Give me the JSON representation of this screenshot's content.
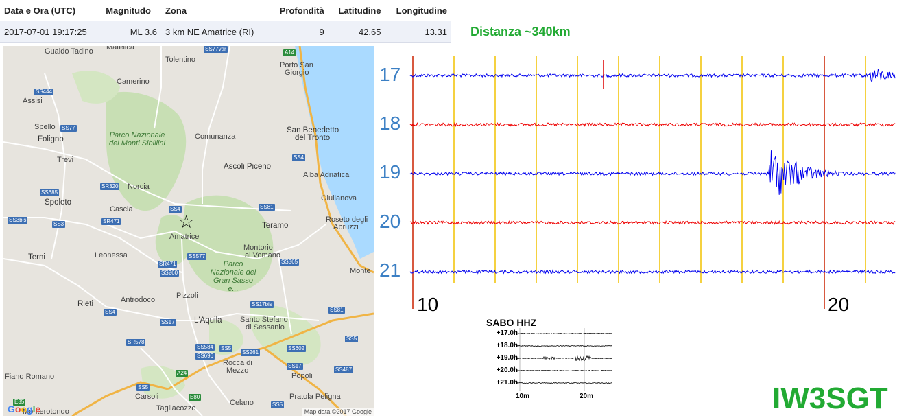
{
  "event_table": {
    "headers": {
      "datetime": "Data e Ora (UTC)",
      "magnitude": "Magnitudo",
      "zone": "Zona",
      "depth": "Profondità",
      "latitude": "Latitudine",
      "longitude": "Longitudine"
    },
    "row": {
      "datetime": "2017-07-01 19:17:25",
      "magnitude": "ML 3.6",
      "zone": "3 km NE Amatrice (RI)",
      "depth": "9",
      "latitude": "42.65",
      "longitude": "13.31"
    }
  },
  "distance": "Distanza ~340km",
  "map": {
    "labels": [
      "Gualdo Tadino",
      "Matelica",
      "Tolentino",
      "Porto San",
      "Giorgio",
      "Camerino",
      "Assisi",
      "Spello",
      "Foligno",
      "Trevi",
      "Spoleto",
      "Norcia",
      "Cascia",
      "Amatrice",
      "Terni",
      "Leonessa",
      "Rieti",
      "Antrodoco",
      "Pizzoli",
      "L'Aquila",
      "Comunanza",
      "Ascoli Piceno",
      "San Benedetto",
      "del Tronto",
      "Alba Adriatica",
      "Giulianova",
      "Roseto degli",
      "Abruzzi",
      "Teramo",
      "Montorio",
      "al Vomano",
      "Santo Stefano",
      "di Sessanio",
      "Rocca di",
      "Mezzo",
      "Popoli",
      "Pratola Peligna",
      "Celano",
      "Carsoli",
      "Tagliacozzo",
      "Fiano Romano",
      "Monterotondo",
      "Monte"
    ],
    "parks": [
      "Parco Nazionale dei Monti Sibillini",
      "Parco Nazionale del Gran Sasso e..."
    ],
    "road_shields": [
      "SS77var",
      "A14",
      "SS444",
      "SS77",
      "SS4",
      "SR320",
      "SS685",
      "SS3bis",
      "SS3",
      "SR471",
      "SS4",
      "SS81",
      "SS577",
      "SR471",
      "SS260",
      "SS365",
      "SS17bis",
      "SS4",
      "SS81",
      "SS17",
      "SR578",
      "SS584",
      "SS696",
      "SS5",
      "SS261",
      "SS602",
      "SS5",
      "SS17",
      "SS487",
      "SS5",
      "A24",
      "E80",
      "SS5",
      "E35"
    ],
    "epicenter_symbol": "☆",
    "attribution": "Map data ©2017 Google",
    "logo": "Google"
  },
  "seismogram": {
    "hours": [
      "17",
      "18",
      "19",
      "20",
      "21"
    ],
    "minute_labels": [
      "10",
      "20"
    ],
    "trace_colors": [
      "#0000ee",
      "#ee0000",
      "#0000ee",
      "#ee0000",
      "#0000ee"
    ],
    "grid_color": "#f2c200",
    "marker_color": "#cc2200",
    "events": [
      {
        "row": 0,
        "minute": 21.2,
        "amplitude": "medium"
      },
      {
        "row": 2,
        "minute": 4.2,
        "amplitude": "medium"
      },
      {
        "row": 2,
        "minute": 18.8,
        "amplitude": "large"
      },
      {
        "row": 3,
        "minute": 4.8,
        "amplitude": "small"
      }
    ]
  },
  "thumbnail": {
    "title": "SABO HHZ",
    "rows": [
      "+17.0h",
      "+18.0h",
      "+19.0h",
      "+20.0h",
      "+21.0h"
    ],
    "ticks": [
      "10m",
      "20m"
    ]
  },
  "callsign": "IW3SGT"
}
